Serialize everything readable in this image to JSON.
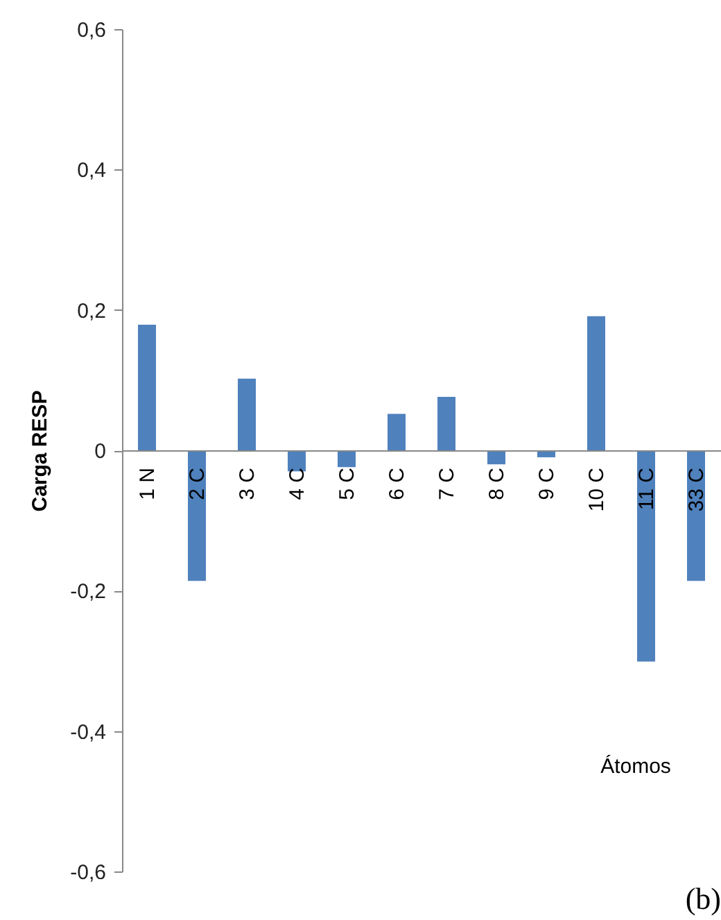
{
  "chart_data": {
    "type": "bar",
    "xlabel": "Átomos",
    "ylabel": "Carga RESP",
    "annotations": [
      "(b)"
    ],
    "categories": [
      "1 N",
      "2 C",
      "3 C",
      "4 C",
      "5 C",
      "6 C",
      "7 C",
      "8 C",
      "9 C",
      "10 C",
      "11 C",
      "33 C"
    ],
    "values": [
      0.179,
      -0.186,
      0.102,
      -0.03,
      -0.024,
      0.052,
      0.076,
      -0.02,
      -0.01,
      0.191,
      -0.301,
      -0.186
    ],
    "color": "#4f81bd",
    "ylim": [
      -0.6,
      0.6
    ],
    "yticks": [
      {
        "value": -0.6,
        "label": "-0,6"
      },
      {
        "value": -0.4,
        "label": "-0,4"
      },
      {
        "value": -0.2,
        "label": "-0,2"
      },
      0,
      {
        "value": 0.2,
        "label": "0,2"
      },
      {
        "value": 0.4,
        "label": "0,4"
      },
      {
        "value": 0.6,
        "label": "0,6"
      }
    ],
    "grid": false
  }
}
